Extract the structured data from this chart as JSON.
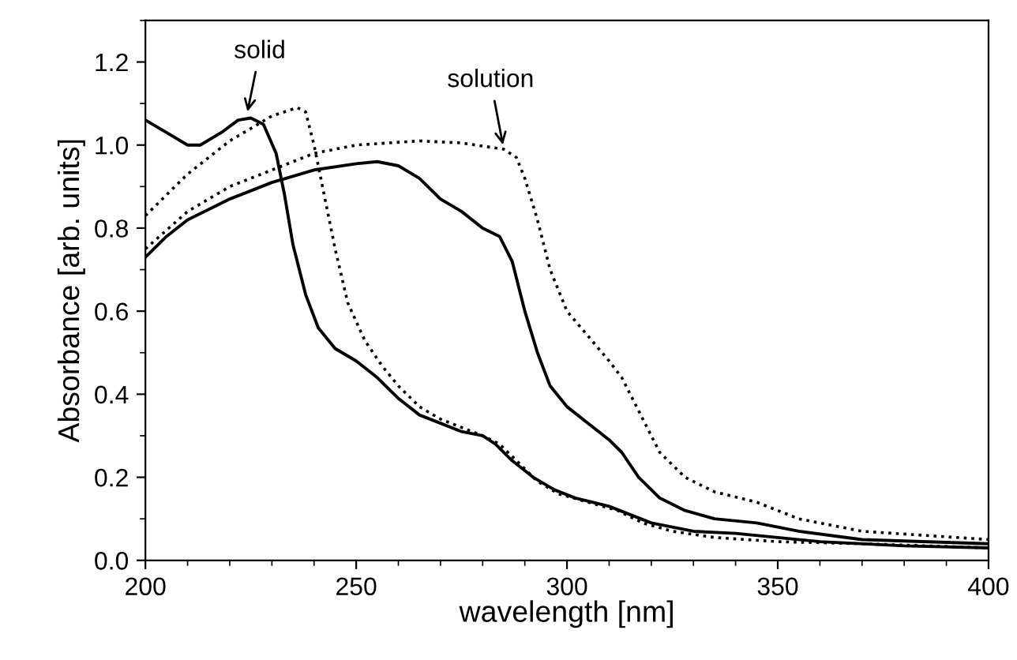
{
  "chart_data": {
    "type": "line",
    "xlabel": "wavelength [nm]",
    "ylabel": "Absorbance [arb. units]",
    "xlim": [
      200,
      400
    ],
    "xticks": [
      200,
      250,
      300,
      350,
      400
    ],
    "ylim": [
      0,
      1.3
    ],
    "yticks": [
      {
        "value": 0,
        "label": "0.0"
      },
      {
        "value": 0.2,
        "label": "0.2"
      },
      {
        "value": 0.4,
        "label": "0.4"
      },
      {
        "value": 0.6,
        "label": "0.6"
      },
      {
        "value": 0.8,
        "label": "0.8"
      },
      {
        "value": 1.0,
        "label": "1.0"
      },
      {
        "value": 1.2,
        "label": "1.2"
      }
    ],
    "grid": false,
    "legend": false,
    "marker": "none",
    "annotations": [
      {
        "text": "solid",
        "x": 224,
        "y": 1.07
      },
      {
        "text": "solution",
        "x": 285,
        "y": 0.99
      }
    ],
    "series": [
      {
        "color": "#000000",
        "line_style": "solid",
        "x": [
          200,
          205,
          210,
          213,
          218,
          222,
          225,
          228,
          231,
          233,
          235,
          238,
          241,
          245,
          250,
          255,
          260,
          265,
          270,
          275,
          280,
          283,
          287,
          292,
          297,
          302,
          310,
          315,
          320,
          330,
          340,
          350,
          360,
          380,
          400
        ],
        "values": [
          1.06,
          1.03,
          1.0,
          1.0,
          1.03,
          1.06,
          1.065,
          1.05,
          0.98,
          0.88,
          0.76,
          0.64,
          0.56,
          0.51,
          0.48,
          0.44,
          0.39,
          0.35,
          0.33,
          0.31,
          0.3,
          0.28,
          0.24,
          0.2,
          0.17,
          0.15,
          0.13,
          0.11,
          0.09,
          0.07,
          0.065,
          0.055,
          0.045,
          0.035,
          0.03
        ]
      },
      {
        "color": "#000000",
        "line_style": "dotted",
        "x": [
          200,
          205,
          210,
          215,
          220,
          225,
          230,
          236,
          238,
          240,
          242,
          245,
          248,
          252,
          256,
          260,
          265,
          270,
          275,
          280,
          284,
          288,
          293,
          298,
          305,
          312,
          318,
          325,
          335,
          350,
          370,
          400
        ],
        "values": [
          0.83,
          0.88,
          0.93,
          0.97,
          1.01,
          1.04,
          1.07,
          1.09,
          1.08,
          1.0,
          0.9,
          0.75,
          0.62,
          0.53,
          0.47,
          0.42,
          0.37,
          0.34,
          0.32,
          0.3,
          0.28,
          0.24,
          0.19,
          0.16,
          0.14,
          0.12,
          0.09,
          0.07,
          0.055,
          0.045,
          0.04,
          0.03
        ]
      },
      {
        "color": "#000000",
        "line_style": "solid",
        "x": [
          200,
          205,
          210,
          220,
          230,
          240,
          250,
          255,
          260,
          265,
          270,
          275,
          280,
          284,
          287,
          290,
          293,
          296,
          300,
          305,
          310,
          313,
          317,
          322,
          328,
          335,
          345,
          355,
          370,
          400
        ],
        "values": [
          0.73,
          0.78,
          0.82,
          0.87,
          0.91,
          0.94,
          0.955,
          0.96,
          0.95,
          0.92,
          0.87,
          0.84,
          0.8,
          0.78,
          0.72,
          0.6,
          0.5,
          0.42,
          0.37,
          0.33,
          0.29,
          0.26,
          0.2,
          0.15,
          0.12,
          0.1,
          0.09,
          0.07,
          0.05,
          0.04
        ]
      },
      {
        "color": "#000000",
        "line_style": "dotted",
        "x": [
          200,
          210,
          220,
          230,
          240,
          250,
          265,
          275,
          285,
          288,
          290,
          293,
          296,
          300,
          305,
          310,
          313,
          317,
          322,
          328,
          335,
          345,
          355,
          370,
          400
        ],
        "values": [
          0.75,
          0.84,
          0.9,
          0.94,
          0.98,
          1.0,
          1.01,
          1.005,
          0.99,
          0.97,
          0.92,
          0.82,
          0.7,
          0.6,
          0.54,
          0.48,
          0.44,
          0.36,
          0.26,
          0.2,
          0.165,
          0.14,
          0.1,
          0.07,
          0.05
        ]
      }
    ]
  }
}
